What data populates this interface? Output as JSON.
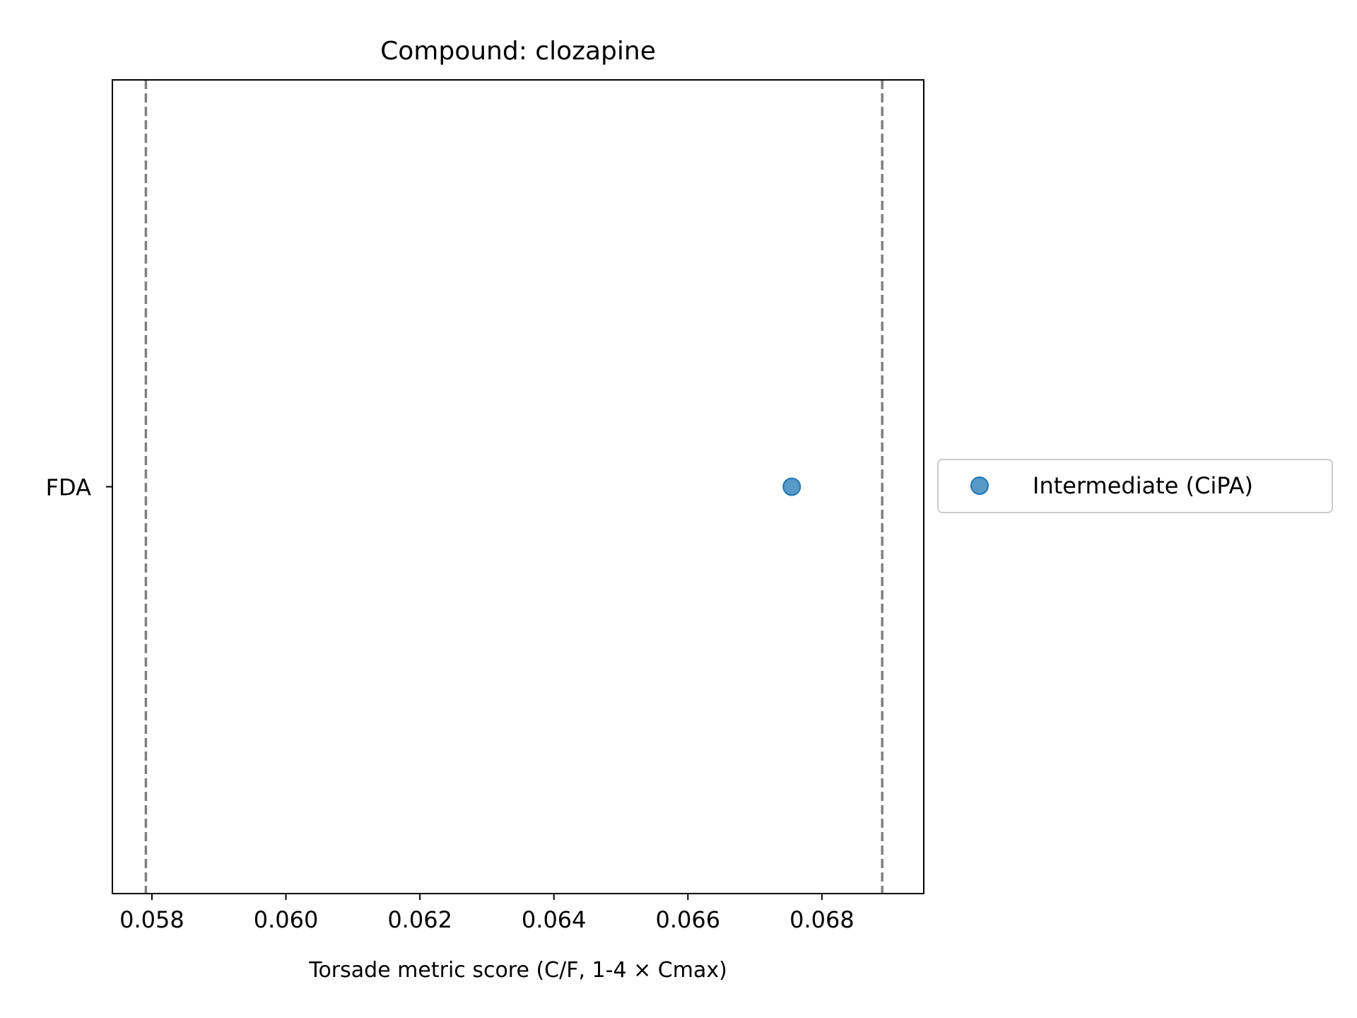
{
  "chart_data": {
    "type": "scatter",
    "title": "Compound: clozapine",
    "xlabel": "Torsade metric score (C/F, 1-4 × Cmax)",
    "ylabel": "",
    "xlim": [
      0.05741,
      0.06952
    ],
    "x_ticks": [
      0.058,
      0.06,
      0.062,
      0.064,
      0.066,
      0.068
    ],
    "x_tick_labels": [
      "0.058",
      "0.060",
      "0.062",
      "0.064",
      "0.066",
      "0.068"
    ],
    "y_categories": [
      "FDA"
    ],
    "series": [
      {
        "name": "Intermediate (CiPA)",
        "color": "#1f77b4",
        "points": [
          {
            "x": 0.06755,
            "y": "FDA"
          }
        ]
      }
    ],
    "reference_lines": [
      {
        "x": 0.05791,
        "style": "dashed",
        "color": "#808080"
      },
      {
        "x": 0.0689,
        "style": "dashed",
        "color": "#808080"
      }
    ],
    "grid": false,
    "legend_position": "outside-right"
  }
}
